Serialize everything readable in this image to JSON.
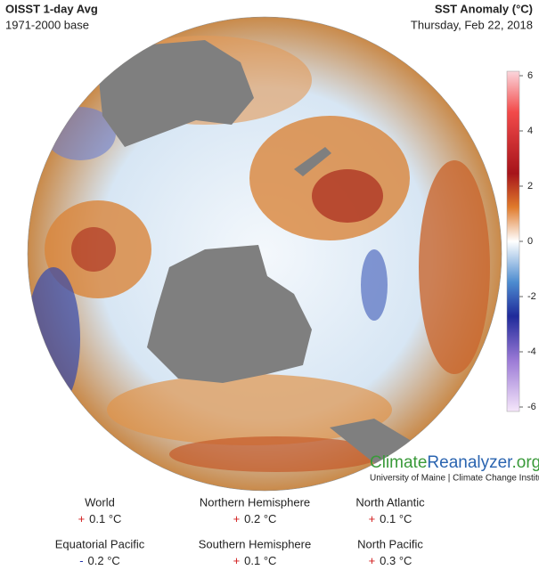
{
  "header": {
    "title": "OISST 1-day Avg",
    "subtitle": "1971-2000 base",
    "variable": "SST Anomaly (°C)",
    "date": "Thursday, Feb 22, 2018"
  },
  "colorbar": {
    "lim": [
      -6,
      6
    ],
    "ticks": [
      6,
      4,
      2,
      0,
      -2,
      -4,
      -6
    ]
  },
  "logo": {
    "parts": [
      "Climate",
      "Reanalyzer",
      ".org"
    ],
    "tagline": "University of Maine | Climate Change Institute"
  },
  "stats": [
    {
      "name": "World",
      "sign": "+",
      "value": "0.1 °C"
    },
    {
      "name": "Northern Hemisphere",
      "sign": "+",
      "value": "0.2 °C"
    },
    {
      "name": "North Atlantic",
      "sign": "+",
      "value": "0.1 °C"
    },
    {
      "name": "Equatorial Pacific",
      "sign": "-",
      "value": "0.2 °C"
    },
    {
      "name": "Southern Hemisphere",
      "sign": "+",
      "value": "0.1 °C"
    },
    {
      "name": "North Pacific",
      "sign": "+",
      "value": "0.3 °C"
    }
  ]
}
